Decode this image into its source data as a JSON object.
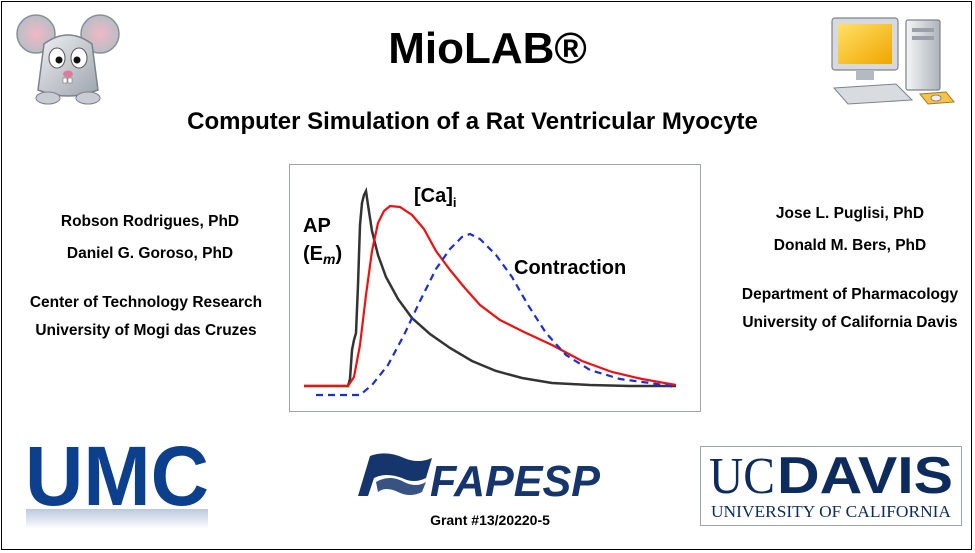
{
  "header": {
    "title": "MioLAB®",
    "subtitle": "Computer Simulation of a Rat Ventricular Myocyte"
  },
  "left_authors": {
    "author1": "Robson Rodrigues, PhD",
    "author2": "Daniel G. Goroso, PhD",
    "affiliation1": "Center of Technology Research",
    "affiliation2": "University of Mogi das Cruzes"
  },
  "right_authors": {
    "author1": "Jose L. Puglisi, PhD",
    "author2": "Donald M. Bers, PhD",
    "affiliation1": "Department of Pharmacology",
    "affiliation2": "University of California Davis"
  },
  "figure": {
    "ap_label": "AP",
    "em_label_open": "(E",
    "em_label_sub": "m",
    "em_label_close": ")",
    "ca_label": "[Ca]",
    "ca_sub": "i",
    "contraction_label": "Contraction",
    "colors": {
      "ap": "#333333",
      "ca": "#ee1111",
      "contraction": "#1a2ed8"
    }
  },
  "logos": {
    "umc": "UMC",
    "fapesp": "FAPESP",
    "ucdavis_uc": "UC",
    "ucdavis_davis": "DAVIS",
    "ucdavis_sub": "UNIVERSITY OF CALIFORNIA",
    "colors": {
      "umc": "#0c3f8c",
      "fapesp": "#15356c",
      "ucdavis": "#0d2b5c"
    }
  },
  "grant": "Grant #13/20220-5",
  "icons": {
    "left": "mouse-icon",
    "right": "computer-icon"
  }
}
